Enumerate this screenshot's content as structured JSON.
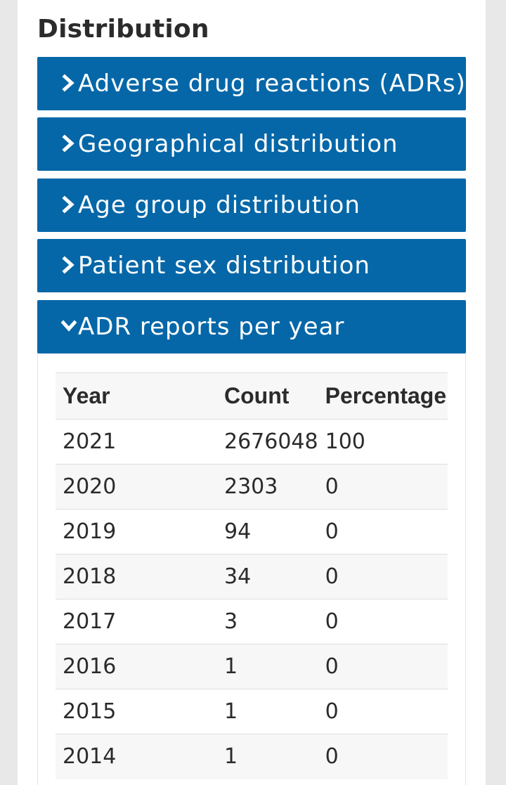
{
  "section": {
    "title": "Distribution"
  },
  "accordion": [
    {
      "label": "Adverse drug reactions (ADRs)",
      "icon": "chevron-right-icon",
      "expanded": false
    },
    {
      "label": "Geographical distribution",
      "icon": "chevron-right-icon",
      "expanded": false
    },
    {
      "label": "Age group distribution",
      "icon": "chevron-right-icon",
      "expanded": false
    },
    {
      "label": "Patient sex distribution",
      "icon": "chevron-right-icon",
      "expanded": false
    },
    {
      "label": "ADR reports per year",
      "icon": "chevron-down-icon",
      "expanded": true
    }
  ],
  "table": {
    "headers": [
      "Year",
      "Count",
      "Percentage"
    ],
    "rows": [
      [
        "2021",
        "2676048",
        "100"
      ],
      [
        "2020",
        "2303",
        "0"
      ],
      [
        "2019",
        "94",
        "0"
      ],
      [
        "2018",
        "34",
        "0"
      ],
      [
        "2017",
        "3",
        "0"
      ],
      [
        "2016",
        "1",
        "0"
      ],
      [
        "2015",
        "1",
        "0"
      ],
      [
        "2014",
        "1",
        "0"
      ]
    ]
  },
  "colors": {
    "accent": "#0567a8",
    "page_background": "#e8e8e8",
    "card_background": "#ffffff",
    "text": "#2b2b2b"
  }
}
